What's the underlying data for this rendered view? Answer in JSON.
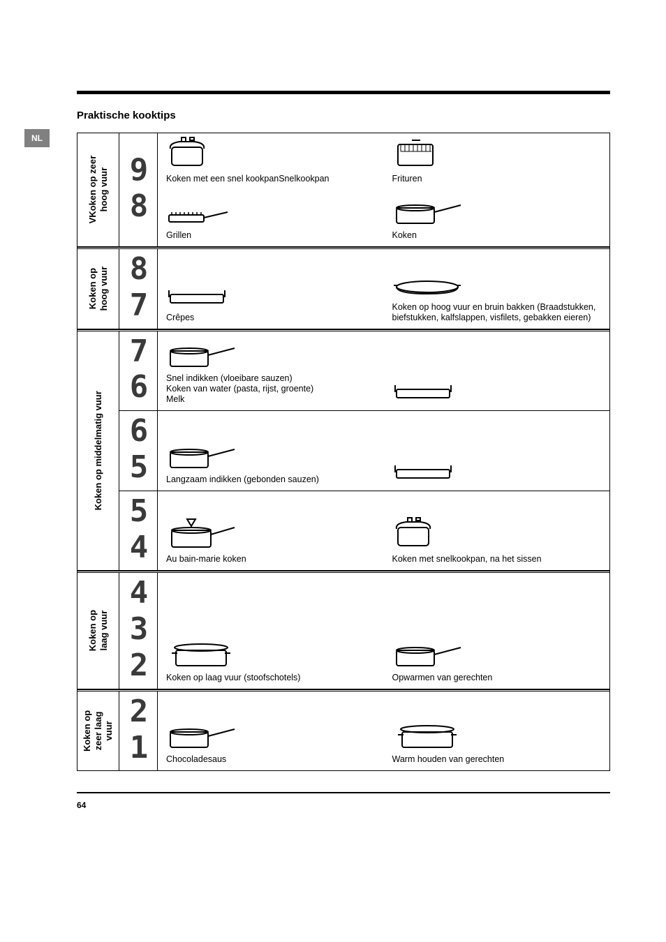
{
  "lang_code": "NL",
  "page_title": "Praktische kooktips",
  "page_number": "64",
  "sections": [
    {
      "category": "VKoken op zeer\nhoog vuur",
      "subrows": [
        {
          "levels": [
            "9",
            "8"
          ],
          "cells": [
            {
              "caption": "Koken met een snel kookpanSnelkookpan",
              "icon": "pressure-pot"
            },
            {
              "caption": "Frituren",
              "icon": "fryer"
            },
            {
              "caption": "Grillen",
              "icon": "grill-pan"
            },
            {
              "caption": "Koken",
              "icon": "saucepan"
            }
          ],
          "layout": "2x2"
        }
      ]
    },
    {
      "category": "Koken op\nhoog vuur",
      "subrows": [
        {
          "levels": [
            "8",
            "7"
          ],
          "cells": [
            {
              "caption": "Crêpes",
              "icon": "flat-pan"
            },
            {
              "caption": "Koken op hoog vuur en bruin bakken (Braadstukken, biefstukken, kalfslappen, visfilets, gebakken eieren)",
              "icon": "oval-pan"
            }
          ],
          "layout": "1x2"
        }
      ]
    },
    {
      "category": "Koken op middelmatig vuur",
      "subrows": [
        {
          "levels": [
            "7",
            "6"
          ],
          "cells": [
            {
              "caption": "Snel indikken (vloeibare sauzen)\nKoken van water (pasta, rijst, groente)\nMelk",
              "icon": "saucepan"
            },
            {
              "caption": "",
              "icon": "flat-pan"
            }
          ],
          "layout": "1x2"
        },
        {
          "levels": [
            "6",
            "5"
          ],
          "cells": [
            {
              "caption": "Langzaam indikken (gebonden sauzen)",
              "icon": "saucepan"
            },
            {
              "caption": "",
              "icon": "flat-pan"
            }
          ],
          "layout": "1x2"
        },
        {
          "levels": [
            "5",
            "4"
          ],
          "cells": [
            {
              "caption": "Au bain-marie koken",
              "icon": "bain-marie"
            },
            {
              "caption": "Koken met snelkookpan, na het sissen",
              "icon": "pressure-pot"
            }
          ],
          "layout": "1x2"
        }
      ]
    },
    {
      "category": "Koken op\nlaag vuur",
      "subrows": [
        {
          "levels": [
            "4",
            "3",
            "2"
          ],
          "cells": [
            {
              "caption": "Koken op laag vuur (stoofschotels)",
              "icon": "casserole"
            },
            {
              "caption": "Opwarmen van gerechten",
              "icon": "saucepan"
            }
          ],
          "layout": "1x2"
        }
      ]
    },
    {
      "category": "Koken op\nzeer laag\nvuur",
      "subrows": [
        {
          "levels": [
            "2",
            "1"
          ],
          "cells": [
            {
              "caption": "Chocoladesaus",
              "icon": "saucepan"
            },
            {
              "caption": "Warm houden van gerechten",
              "icon": "casserole"
            }
          ],
          "layout": "1x2"
        }
      ]
    }
  ]
}
